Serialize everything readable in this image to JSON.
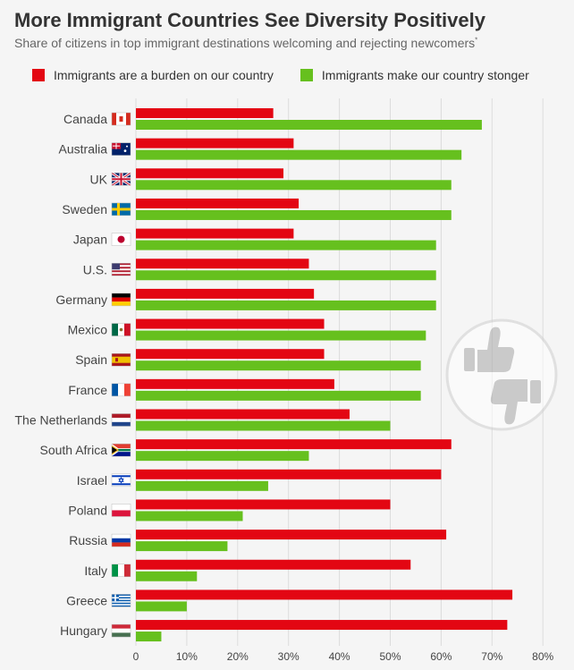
{
  "header": {
    "title": "More Immigrant Countries See Diversity Positively",
    "subtitle": "Share of citizens in top immigrant destinations welcoming and rejecting newcomers",
    "subtitle_mark": "*"
  },
  "colors": {
    "burden": "#e30613",
    "stronger": "#66c01e",
    "grid": "#dcdcdc",
    "text": "#444444"
  },
  "icons": [
    "thumbs-up-icon",
    "thumbs-down-icon"
  ],
  "chart_data": {
    "type": "bar",
    "orientation": "horizontal",
    "categories": [
      "Canada",
      "Australia",
      "UK",
      "Sweden",
      "Japan",
      "U.S.",
      "Germany",
      "Mexico",
      "Spain",
      "France",
      "The Netherlands",
      "South Africa",
      "Israel",
      "Poland",
      "Russia",
      "Italy",
      "Greece",
      "Hungary"
    ],
    "series": [
      {
        "name": "Immigrants are a burden on our country",
        "values": [
          27,
          31,
          29,
          32,
          31,
          34,
          35,
          37,
          37,
          39,
          42,
          62,
          60,
          50,
          61,
          54,
          74,
          73
        ]
      },
      {
        "name": "Immigrants make our country stonger",
        "values": [
          68,
          64,
          62,
          62,
          59,
          59,
          59,
          57,
          56,
          56,
          50,
          34,
          26,
          21,
          18,
          12,
          10,
          5
        ]
      }
    ],
    "xlim": [
      0,
      80
    ],
    "xticks": [
      0,
      10,
      20,
      30,
      40,
      50,
      60,
      70,
      80
    ],
    "xtick_labels": [
      "0",
      "10%",
      "20%",
      "30%",
      "40%",
      "50%",
      "60%",
      "70%",
      "80%"
    ],
    "grid": true,
    "legend": "top"
  }
}
